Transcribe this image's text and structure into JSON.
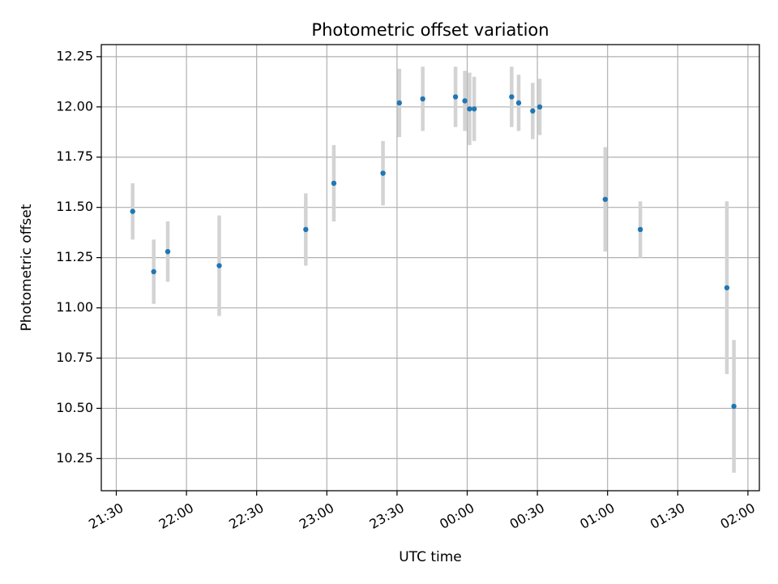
{
  "chart_data": {
    "type": "scatter",
    "title": "Photometric offset variation",
    "xlabel": "UTC time",
    "ylabel": "Photometric offset",
    "x_ticks": [
      "21:30",
      "22:00",
      "22:30",
      "23:00",
      "23:30",
      "00:00",
      "00:30",
      "01:00",
      "01:30",
      "02:00"
    ],
    "y_ticks": [
      "10.25",
      "10.50",
      "10.75",
      "11.00",
      "11.25",
      "11.50",
      "11.75",
      "12.00",
      "12.25"
    ],
    "ylim": [
      10.09,
      12.31
    ],
    "grid": true,
    "colors": {
      "point": "#1f77b4",
      "errorbar": "#d3d3d3",
      "grid": "#b0b0b0"
    },
    "points": [
      {
        "t": "21:37",
        "y": 11.48,
        "err": 0.14
      },
      {
        "t": "21:46",
        "y": 11.18,
        "err": 0.16
      },
      {
        "t": "21:52",
        "y": 11.28,
        "err": 0.15
      },
      {
        "t": "22:14",
        "y": 11.21,
        "err": 0.25
      },
      {
        "t": "22:51",
        "y": 11.39,
        "err": 0.18
      },
      {
        "t": "23:03",
        "y": 11.62,
        "err": 0.19
      },
      {
        "t": "23:24",
        "y": 11.67,
        "err": 0.16
      },
      {
        "t": "23:31",
        "y": 12.02,
        "err": 0.17
      },
      {
        "t": "23:41",
        "y": 12.04,
        "err": 0.16
      },
      {
        "t": "23:55",
        "y": 12.05,
        "err": 0.15
      },
      {
        "t": "23:59",
        "y": 12.03,
        "err": 0.15
      },
      {
        "t": "00:01",
        "y": 11.99,
        "err": 0.18
      },
      {
        "t": "00:03",
        "y": 11.99,
        "err": 0.16
      },
      {
        "t": "00:19",
        "y": 12.05,
        "err": 0.15
      },
      {
        "t": "00:22",
        "y": 12.02,
        "err": 0.14
      },
      {
        "t": "00:28",
        "y": 11.98,
        "err": 0.14
      },
      {
        "t": "00:31",
        "y": 12.0,
        "err": 0.14
      },
      {
        "t": "00:59",
        "y": 11.54,
        "err": 0.26
      },
      {
        "t": "01:14",
        "y": 11.39,
        "err": 0.14
      },
      {
        "t": "01:51",
        "y": 11.1,
        "err": 0.43
      },
      {
        "t": "01:54",
        "y": 10.51,
        "err": 0.33
      }
    ]
  }
}
